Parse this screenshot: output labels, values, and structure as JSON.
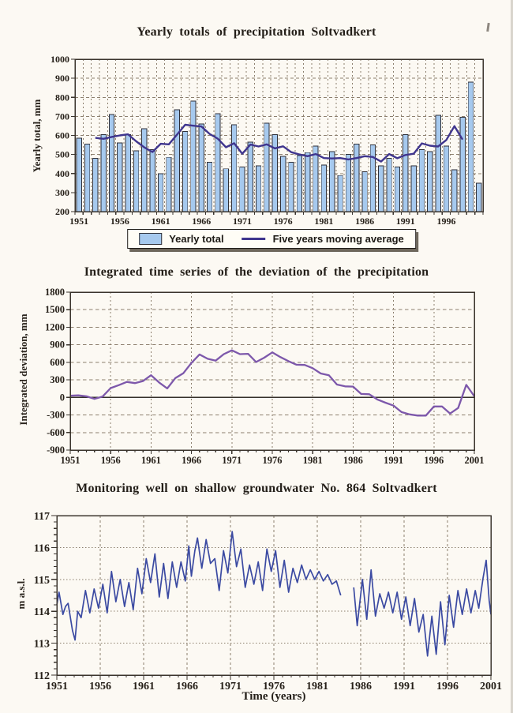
{
  "page": {
    "background": "#fcf9f3"
  },
  "chart_data": [
    {
      "type": "bar",
      "title": "Yearly totals of precipitation Soltvadkert",
      "ylabel": "Yearly total, mm",
      "xlabel": "",
      "year_range": [
        1951,
        2000
      ],
      "values": [
        585,
        555,
        480,
        605,
        710,
        560,
        605,
        520,
        635,
        525,
        400,
        485,
        735,
        620,
        780,
        660,
        460,
        715,
        425,
        655,
        435,
        565,
        440,
        665,
        605,
        490,
        460,
        495,
        510,
        545,
        445,
        515,
        390,
        500,
        555,
        410,
        550,
        440,
        480,
        435,
        605,
        440,
        525,
        515,
        705,
        545,
        420,
        695,
        880,
        350
      ],
      "moving_average": {
        "label": "Five years moving average",
        "window": 5,
        "derived_from_values": true
      },
      "legend": {
        "bar_label": "Yearly total",
        "line_label": "Five years moving average"
      },
      "ylim": [
        200,
        1000
      ],
      "yticks": [
        200,
        300,
        400,
        500,
        600,
        700,
        800,
        900,
        1000
      ],
      "xticks": [
        1951,
        1956,
        1961,
        1966,
        1971,
        1976,
        1981,
        1986,
        1991,
        1996
      ],
      "grid": true,
      "legend_position": "bottom-center",
      "colors": {
        "bar_fill": "#a6c9ee",
        "bar_stroke": "#2f3038",
        "ma_line": "#3f358e"
      }
    },
    {
      "type": "line",
      "title": "Integrated time series of the deviation of the precipitation",
      "ylabel": "Integrated deviation, mm",
      "xlabel": "",
      "year_range": [
        1951,
        2001
      ],
      "values": [
        30,
        35,
        20,
        -25,
        15,
        160,
        210,
        265,
        245,
        280,
        380,
        255,
        155,
        330,
        415,
        590,
        735,
        660,
        630,
        740,
        805,
        740,
        745,
        605,
        680,
        770,
        690,
        620,
        560,
        555,
        500,
        410,
        380,
        220,
        190,
        185,
        60,
        55,
        -35,
        -90,
        -140,
        -250,
        -290,
        -310,
        -310,
        -155,
        -155,
        -275,
        -180,
        215,
        20
      ],
      "ylim": [
        -900,
        1800
      ],
      "yticks": [
        -900,
        -600,
        -300,
        0,
        300,
        600,
        900,
        1200,
        1500,
        1800
      ],
      "xticks": [
        1951,
        1956,
        1961,
        1966,
        1971,
        1976,
        1981,
        1986,
        1991,
        1996,
        2001
      ],
      "zero_line": true,
      "grid": true,
      "colors": {
        "line": "#7d58ab"
      }
    },
    {
      "type": "line",
      "title": "Monitoring well on shallow groundwater No. 864 Soltvadkert",
      "ylabel": "m a.s.l.",
      "xlabel": "Time (years)",
      "xlim": [
        1951,
        2001
      ],
      "ylim": [
        112,
        117
      ],
      "yticks": [
        112,
        113,
        114,
        115,
        116,
        117
      ],
      "xticks": [
        1951,
        1956,
        1961,
        1966,
        1971,
        1976,
        1981,
        1986,
        1991,
        1996,
        2001
      ],
      "y_minor_step": 0.2,
      "x_minor_step": 1,
      "grid": true,
      "data_gap": [
        1983.7,
        1985.2
      ],
      "segments": [
        [
          [
            1951.0,
            114.2
          ],
          [
            1951.25,
            114.6
          ],
          [
            1951.7,
            113.9
          ],
          [
            1952.0,
            114.15
          ],
          [
            1952.3,
            114.25
          ],
          [
            1952.8,
            113.4
          ],
          [
            1953.1,
            113.1
          ],
          [
            1953.4,
            114.0
          ],
          [
            1953.8,
            113.8
          ],
          [
            1954.3,
            114.65
          ],
          [
            1954.8,
            113.95
          ],
          [
            1955.3,
            114.7
          ],
          [
            1955.8,
            114.1
          ],
          [
            1956.3,
            114.85
          ],
          [
            1956.8,
            113.95
          ],
          [
            1957.3,
            115.25
          ],
          [
            1957.8,
            114.3
          ],
          [
            1958.3,
            115.0
          ],
          [
            1958.8,
            114.15
          ],
          [
            1959.3,
            114.9
          ],
          [
            1959.8,
            114.05
          ],
          [
            1960.3,
            115.35
          ],
          [
            1960.8,
            114.55
          ],
          [
            1961.3,
            115.65
          ],
          [
            1961.8,
            114.9
          ],
          [
            1962.3,
            115.8
          ],
          [
            1962.8,
            114.45
          ],
          [
            1963.3,
            115.5
          ],
          [
            1963.8,
            114.4
          ],
          [
            1964.3,
            115.55
          ],
          [
            1964.8,
            114.75
          ],
          [
            1965.3,
            115.55
          ],
          [
            1965.8,
            114.95
          ],
          [
            1966.2,
            116.05
          ],
          [
            1966.5,
            115.1
          ],
          [
            1966.9,
            115.9
          ],
          [
            1967.2,
            116.3
          ],
          [
            1967.7,
            115.35
          ],
          [
            1968.2,
            116.25
          ],
          [
            1968.7,
            115.5
          ],
          [
            1969.2,
            115.65
          ],
          [
            1969.7,
            114.65
          ],
          [
            1970.2,
            115.9
          ],
          [
            1970.7,
            115.2
          ],
          [
            1971.2,
            116.5
          ],
          [
            1971.7,
            115.4
          ],
          [
            1972.2,
            115.95
          ],
          [
            1972.7,
            114.75
          ],
          [
            1973.2,
            115.45
          ],
          [
            1973.7,
            114.85
          ],
          [
            1974.2,
            115.55
          ],
          [
            1974.7,
            114.65
          ],
          [
            1975.2,
            115.95
          ],
          [
            1975.7,
            115.25
          ],
          [
            1976.2,
            115.9
          ],
          [
            1976.7,
            114.75
          ],
          [
            1977.2,
            115.6
          ],
          [
            1977.7,
            114.6
          ],
          [
            1978.2,
            115.35
          ],
          [
            1978.7,
            114.9
          ],
          [
            1979.2,
            115.45
          ],
          [
            1979.7,
            115.0
          ],
          [
            1980.2,
            115.3
          ],
          [
            1980.7,
            115.0
          ],
          [
            1981.2,
            115.25
          ],
          [
            1981.7,
            114.95
          ],
          [
            1982.2,
            115.15
          ],
          [
            1982.7,
            114.85
          ],
          [
            1983.2,
            114.95
          ],
          [
            1983.7,
            114.5
          ]
        ],
        [
          [
            1985.2,
            114.75
          ],
          [
            1985.6,
            113.55
          ],
          [
            1986.2,
            115.0
          ],
          [
            1986.7,
            113.75
          ],
          [
            1987.2,
            115.3
          ],
          [
            1987.7,
            113.85
          ],
          [
            1988.2,
            114.55
          ],
          [
            1988.7,
            114.1
          ],
          [
            1989.2,
            114.6
          ],
          [
            1989.7,
            113.95
          ],
          [
            1990.2,
            114.6
          ],
          [
            1990.7,
            113.75
          ],
          [
            1991.2,
            114.45
          ],
          [
            1991.7,
            113.55
          ],
          [
            1992.2,
            114.4
          ],
          [
            1992.7,
            113.35
          ],
          [
            1993.2,
            113.9
          ],
          [
            1993.7,
            112.6
          ],
          [
            1994.2,
            113.85
          ],
          [
            1994.7,
            112.65
          ],
          [
            1995.2,
            114.3
          ],
          [
            1995.7,
            112.95
          ],
          [
            1996.2,
            114.5
          ],
          [
            1996.7,
            113.5
          ],
          [
            1997.2,
            114.65
          ],
          [
            1997.7,
            113.9
          ],
          [
            1998.2,
            114.7
          ],
          [
            1998.7,
            113.95
          ],
          [
            1999.2,
            114.65
          ],
          [
            1999.6,
            114.1
          ],
          [
            2000.1,
            115.05
          ],
          [
            2000.45,
            115.6
          ],
          [
            2000.8,
            114.35
          ],
          [
            2001.0,
            113.9
          ]
        ]
      ],
      "colors": {
        "line": "#3b4aa2"
      }
    }
  ],
  "style": {
    "grid_color": "#8d7f6d",
    "frame_color": "#3a342c",
    "text_color": "#262019"
  }
}
